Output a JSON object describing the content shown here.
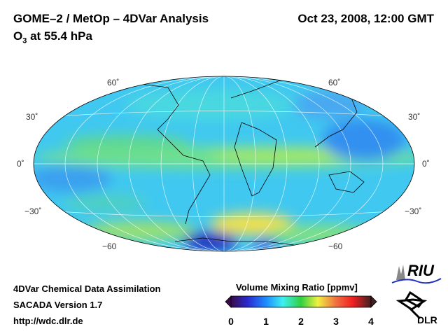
{
  "header": {
    "title": "GOME–2 / MetOp – 4DVar Analysis",
    "date": "Oct 23, 2008, 12:00 GMT",
    "species": "O",
    "species_sub": "3",
    "level": " at 55.4 hPa"
  },
  "map": {
    "projection": "Hammer",
    "lat_labels_left": [
      "60˚",
      "30˚",
      "0˚",
      "−30˚",
      "−60"
    ],
    "lat_labels_right": [
      "60˚",
      "30˚",
      "0˚",
      "−30˚",
      "−60"
    ]
  },
  "footer": {
    "line1": "4DVar Chemical Data Assimilation",
    "line2": "SACADA Version 1.7",
    "line3": "http://wdc.dlr.de"
  },
  "colorbar": {
    "title": "Volume Mixing Ratio [ppmv]",
    "ticks": [
      "0",
      "1",
      "2",
      "3",
      "4"
    ],
    "range": [
      0,
      4
    ],
    "colors": [
      "#3a0a4a",
      "#2a2ad0",
      "#1e8cff",
      "#3cf0f0",
      "#30d040",
      "#f0f040",
      "#f07040",
      "#f02020",
      "#402020"
    ]
  },
  "logos": {
    "riu": "RIU",
    "dlr": "DLR"
  }
}
